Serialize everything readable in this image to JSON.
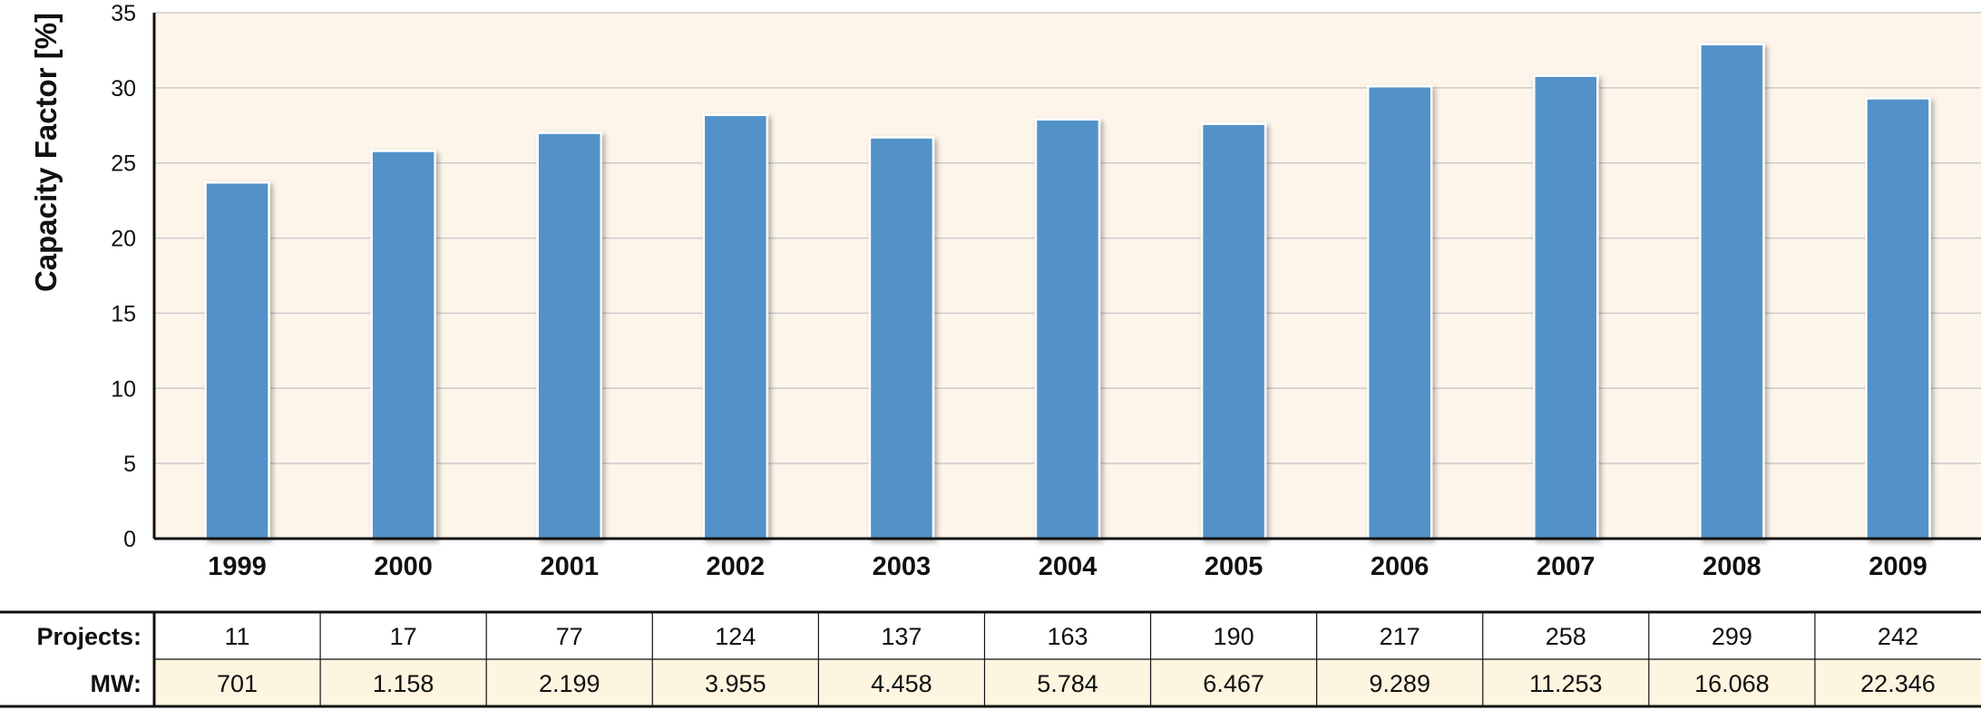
{
  "chart_data": {
    "type": "bar",
    "ylabel": "Capacity Factor [%]",
    "xlabel": "",
    "ylim": [
      0,
      35
    ],
    "yticks": [
      0,
      5,
      10,
      15,
      20,
      25,
      30,
      35
    ],
    "grid": true,
    "categories": [
      "1999",
      "2000",
      "2001",
      "2002",
      "2003",
      "2004",
      "2005",
      "2006",
      "2007",
      "2008",
      "2009"
    ],
    "values": [
      23.7,
      25.8,
      27.0,
      28.2,
      26.7,
      27.9,
      27.6,
      30.1,
      30.8,
      32.9,
      29.3
    ],
    "colors": {
      "bar": "#5292c8",
      "plot_bg": "#fdf5ea",
      "grid": "#cccccc",
      "table_row_bg": "#fdf5e0"
    },
    "table": {
      "rows": [
        {
          "label": "Projects:",
          "values": [
            "11",
            "17",
            "77",
            "124",
            "137",
            "163",
            "190",
            "217",
            "258",
            "299",
            "242"
          ]
        },
        {
          "label": "MW:",
          "values": [
            "701",
            "1.158",
            "2.199",
            "3.955",
            "4.458",
            "5.784",
            "6.467",
            "9.289",
            "11.253",
            "16.068",
            "22.346"
          ]
        }
      ]
    }
  }
}
